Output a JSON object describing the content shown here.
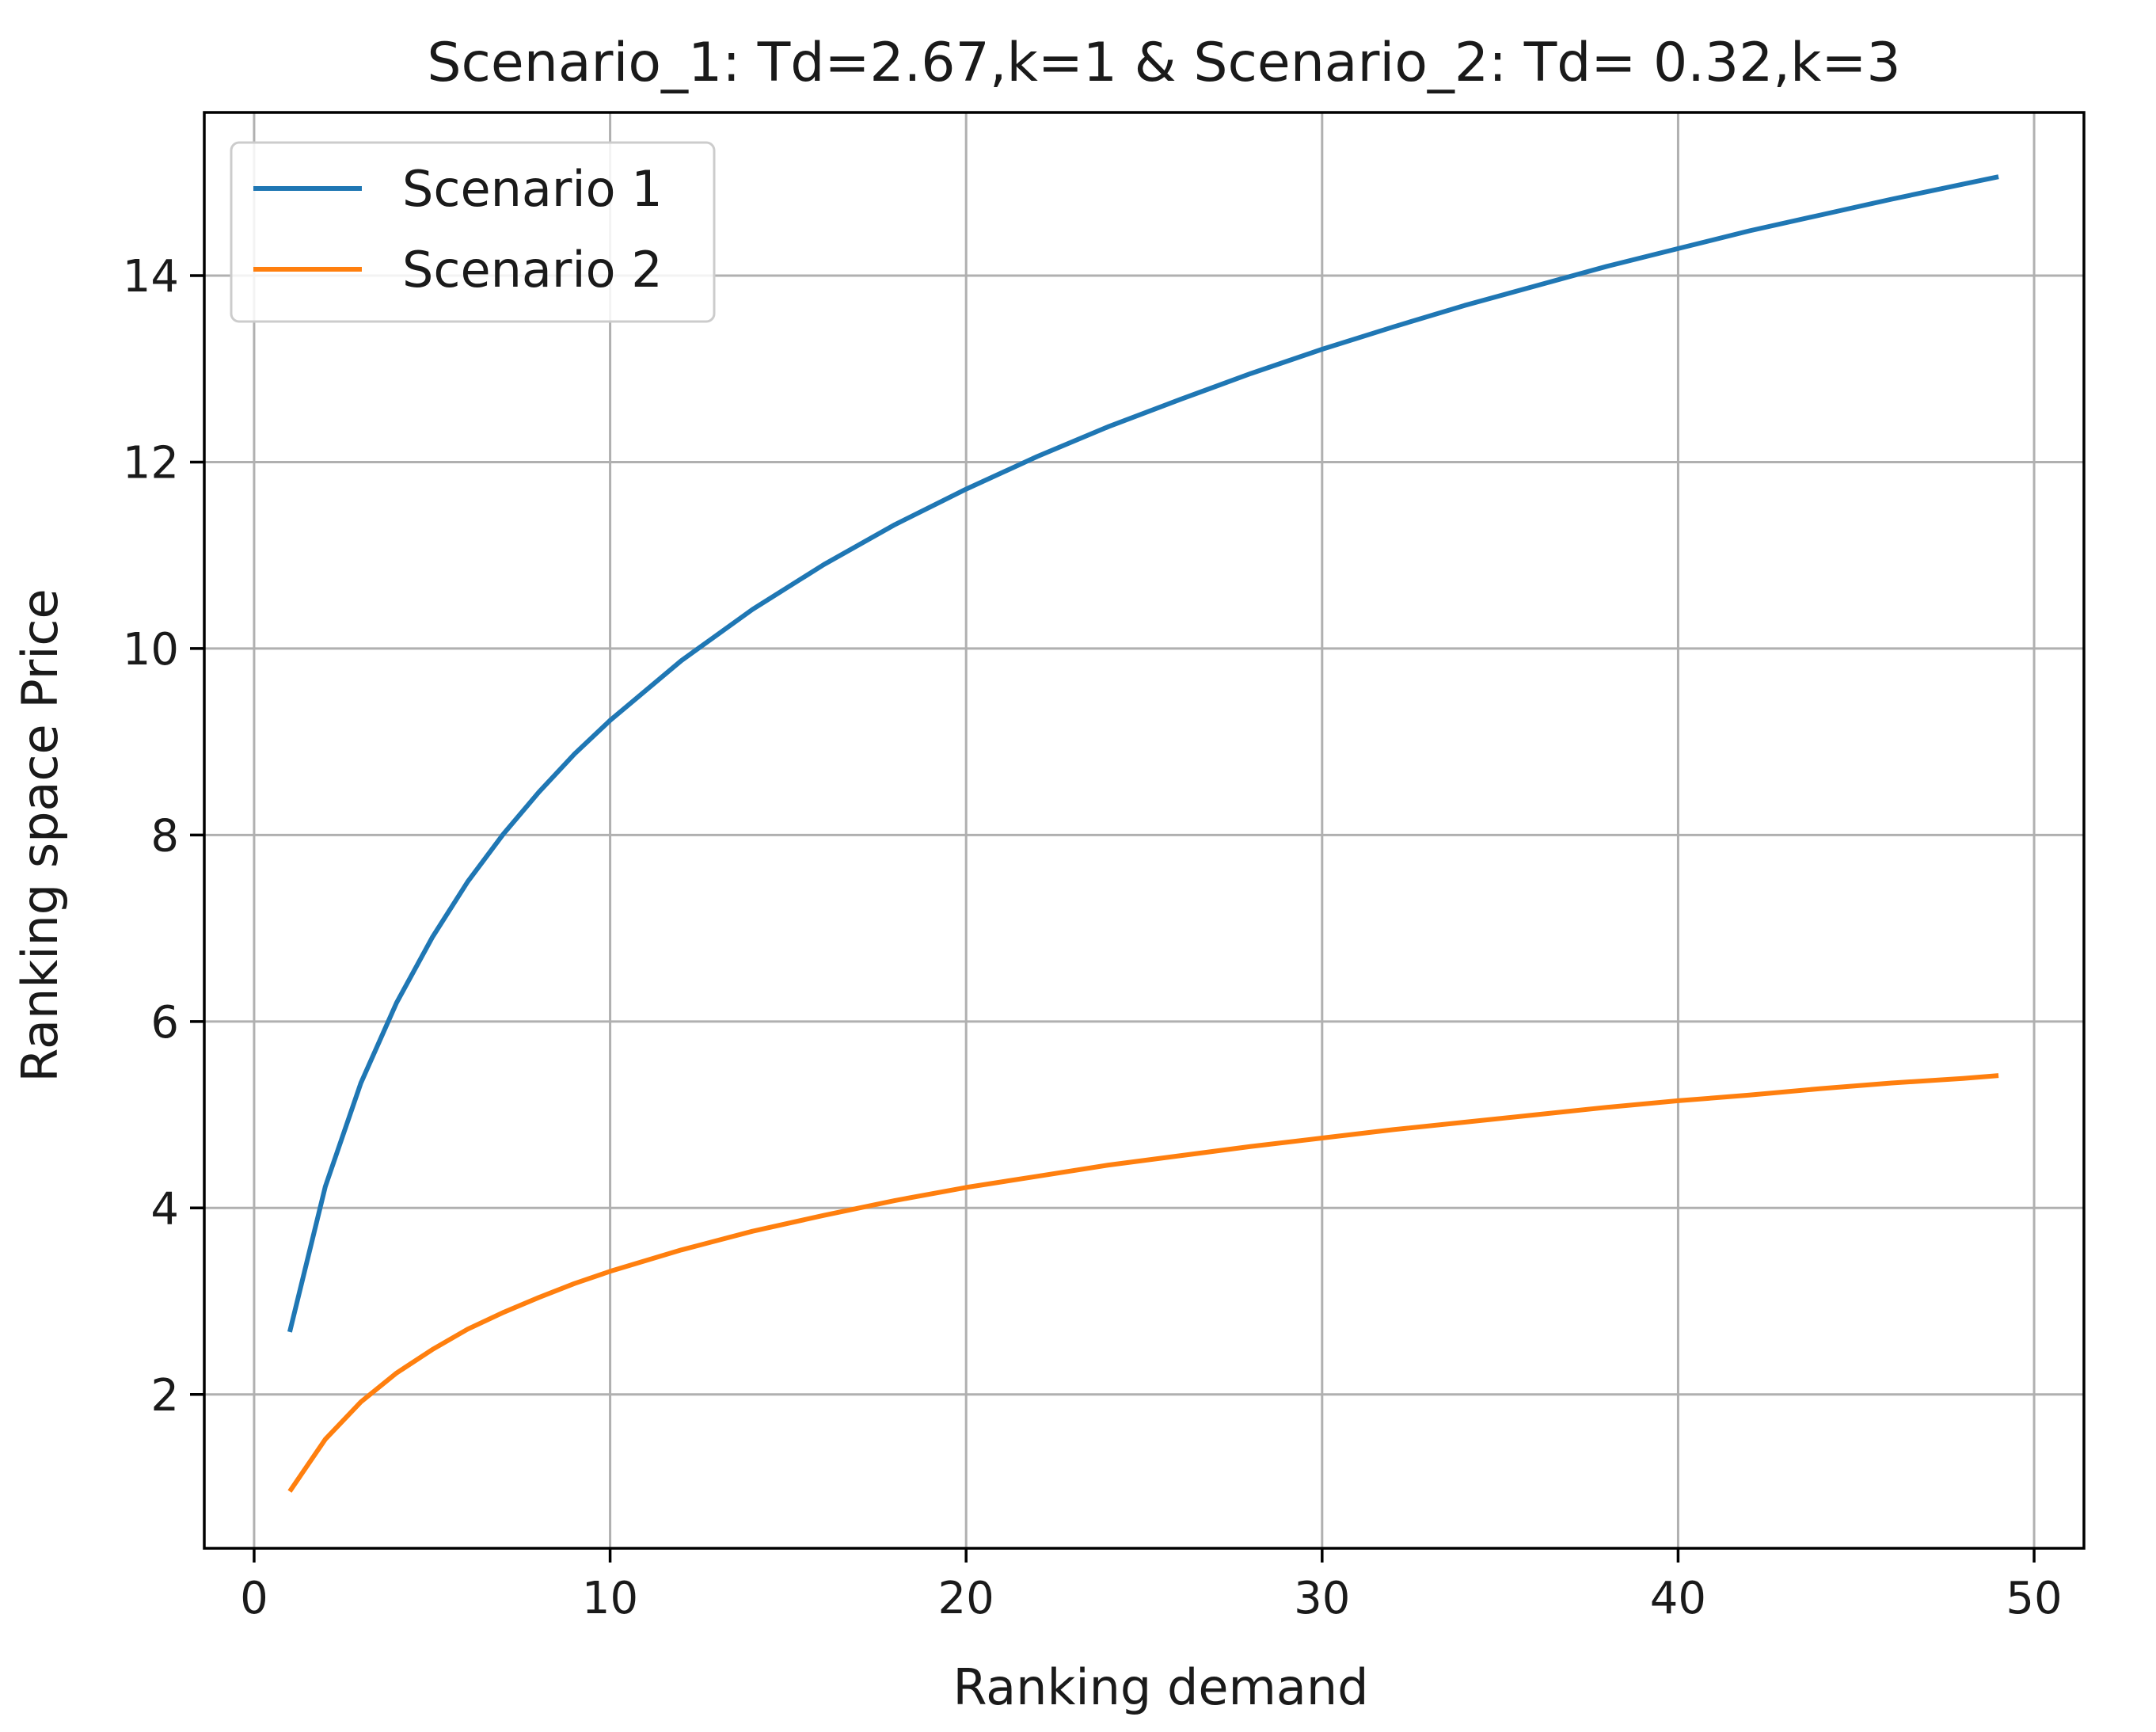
{
  "chart_data": {
    "type": "line",
    "title": "Scenario_1: Td=2.67,k=1 & Scenario_2: Td= 0.32,k=3",
    "xlabel": "Ranking demand",
    "ylabel": "Ranking space Price",
    "xlim": [
      -1.4,
      51.4
    ],
    "ylim": [
      0.35,
      15.75
    ],
    "xticks": [
      0,
      10,
      20,
      30,
      40,
      50
    ],
    "xtick_labels": [
      "0",
      "10",
      "20",
      "30",
      "40",
      "50"
    ],
    "yticks": [
      2,
      4,
      6,
      8,
      10,
      12,
      14
    ],
    "ytick_labels": [
      "2",
      "4",
      "6",
      "8",
      "10",
      "12",
      "14"
    ],
    "grid": true,
    "legend_position": "upper-left",
    "series": [
      {
        "name": "Scenario 1",
        "color": "#1f77b4",
        "x": [
          1,
          2,
          3,
          4,
          5,
          6,
          7,
          8,
          9,
          10,
          12,
          14,
          16,
          18,
          20,
          22,
          24,
          26,
          28,
          30,
          32,
          34,
          36,
          38,
          40,
          42,
          44,
          46,
          48,
          49
        ],
        "y": [
          2.67,
          4.23,
          5.34,
          6.2,
          6.9,
          7.5,
          8.01,
          8.46,
          8.87,
          9.23,
          9.87,
          10.42,
          10.9,
          11.33,
          11.71,
          12.06,
          12.38,
          12.67,
          12.95,
          13.21,
          13.45,
          13.68,
          13.89,
          14.1,
          14.29,
          14.48,
          14.65,
          14.82,
          14.98,
          15.06
        ]
      },
      {
        "name": "Scenario 2",
        "color": "#ff7f0e",
        "x": [
          1,
          2,
          3,
          4,
          5,
          6,
          7,
          8,
          9,
          10,
          12,
          14,
          16,
          18,
          20,
          22,
          24,
          26,
          28,
          30,
          32,
          34,
          36,
          38,
          40,
          42,
          44,
          46,
          48,
          49
        ],
        "y": [
          0.96,
          1.52,
          1.92,
          2.23,
          2.48,
          2.7,
          2.88,
          3.04,
          3.19,
          3.32,
          3.55,
          3.75,
          3.92,
          4.08,
          4.22,
          4.34,
          4.46,
          4.56,
          4.66,
          4.75,
          4.84,
          4.92,
          5.0,
          5.08,
          5.15,
          5.21,
          5.28,
          5.34,
          5.39,
          5.42
        ]
      }
    ]
  }
}
